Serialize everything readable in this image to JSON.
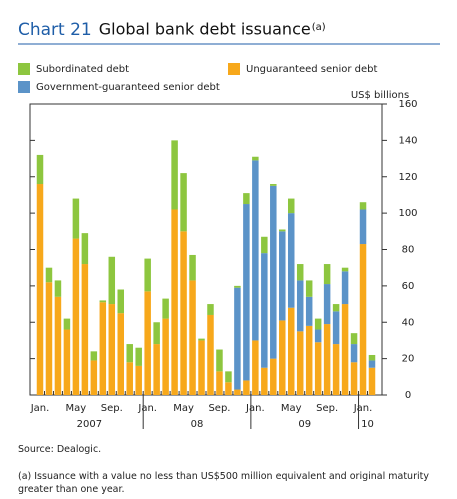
{
  "chart_data": {
    "type": "stacked_bar",
    "title_number": "Chart 21",
    "title": "Global bank debt issuance",
    "title_note": "(a)",
    "y_axis_label": "US$ billions",
    "categories": [
      "Jan.",
      null,
      null,
      null,
      "May",
      null,
      null,
      null,
      "Sep.",
      null,
      null,
      null,
      "Jan.",
      null,
      null,
      null,
      "May",
      null,
      null,
      null,
      "Sep.",
      null,
      null,
      null,
      "Jan.",
      null,
      null,
      null,
      "May",
      null,
      null,
      null,
      "Sep.",
      null,
      null,
      null,
      "Jan.",
      null
    ],
    "year_labels": [
      "2007",
      "08",
      "09",
      "10"
    ],
    "series": [
      {
        "name": "Unguaranteed senior debt",
        "color": "#f7a81b",
        "values": [
          116,
          62,
          54,
          36,
          86,
          72,
          19,
          51,
          50,
          45,
          18,
          16,
          57,
          28,
          42,
          102,
          90,
          63,
          30,
          44,
          13,
          7,
          3,
          8,
          30,
          15,
          20,
          41,
          48,
          35,
          38,
          29,
          39,
          28,
          50,
          18,
          83,
          15
        ]
      },
      {
        "name": "Government-guaranteed senior debt",
        "color": "#5b93c8",
        "values": [
          0,
          0,
          0,
          0,
          0,
          0,
          0,
          0,
          0,
          0,
          0,
          0,
          0,
          0,
          0,
          0,
          0,
          0,
          0,
          0,
          0,
          0,
          56,
          97,
          99,
          63,
          95,
          49,
          52,
          28,
          16,
          7,
          22,
          18,
          18,
          10,
          19,
          4
        ]
      },
      {
        "name": "Subordinated debt",
        "color": "#8dc63f",
        "values": [
          16,
          8,
          9,
          6,
          22,
          17,
          5,
          1,
          26,
          13,
          10,
          10,
          18,
          12,
          11,
          38,
          32,
          14,
          1,
          6,
          12,
          6,
          1,
          6,
          2,
          9,
          1,
          1,
          8,
          9,
          9,
          6,
          11,
          4,
          2,
          6,
          4,
          3
        ]
      }
    ],
    "ylim": [
      0,
      160
    ],
    "yticks": [
      0,
      20,
      40,
      60,
      80,
      100,
      120,
      140,
      160
    ],
    "source": "Source: Dealogic.",
    "footnote": "(a) Issuance with a value no less than US$500 million equivalent and original maturity greater than one year."
  }
}
